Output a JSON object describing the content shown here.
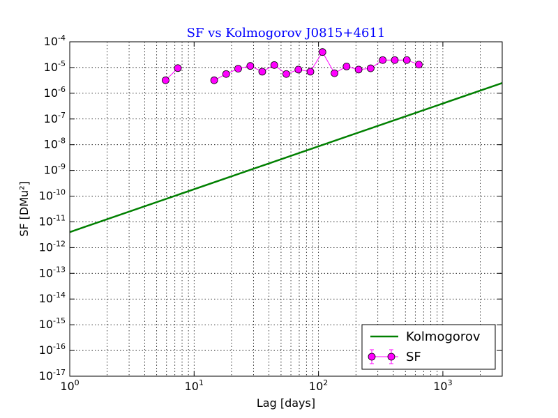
{
  "chart_data": {
    "type": "line",
    "title": "SF vs Kolmogorov J0815+4611",
    "xlabel": "Lag [days]",
    "ylabel": "SF [DMu²]",
    "x_scale": "log",
    "y_scale": "log",
    "xlim": [
      1,
      3000
    ],
    "ylim": [
      1e-17,
      0.0001
    ],
    "grid": true,
    "legend_position": "lower-right",
    "x_ticks": [
      {
        "value": 1,
        "base": "10",
        "exp": "0"
      },
      {
        "value": 10,
        "base": "10",
        "exp": "1"
      },
      {
        "value": 100,
        "base": "10",
        "exp": "2"
      },
      {
        "value": 1000,
        "base": "10",
        "exp": "3"
      }
    ],
    "y_ticks": [
      {
        "value": 1e-17,
        "base": "10",
        "exp": "-17"
      },
      {
        "value": 1e-16,
        "base": "10",
        "exp": "-16"
      },
      {
        "value": 1e-15,
        "base": "10",
        "exp": "-15"
      },
      {
        "value": 1e-14,
        "base": "10",
        "exp": "-14"
      },
      {
        "value": 1e-13,
        "base": "10",
        "exp": "-13"
      },
      {
        "value": 1e-12,
        "base": "10",
        "exp": "-12"
      },
      {
        "value": 1e-11,
        "base": "10",
        "exp": "-11"
      },
      {
        "value": 1e-10,
        "base": "10",
        "exp": "-10"
      },
      {
        "value": 1e-09,
        "base": "10",
        "exp": "-9"
      },
      {
        "value": 1e-08,
        "base": "10",
        "exp": "-8"
      },
      {
        "value": 1e-07,
        "base": "10",
        "exp": "-7"
      },
      {
        "value": 1e-06,
        "base": "10",
        "exp": "-6"
      },
      {
        "value": 1e-05,
        "base": "10",
        "exp": "-5"
      },
      {
        "value": 0.0001,
        "base": "10",
        "exp": "-4"
      }
    ],
    "series": [
      {
        "name": "Kolmogorov",
        "color": "#008000",
        "style": "line",
        "x": [
          1,
          3000
        ],
        "y": [
          4e-12,
          2.5e-06
        ]
      },
      {
        "name": "SF",
        "color": "#ff00ff",
        "style": "line-markers",
        "x": [
          5.9,
          7.4,
          14.5,
          18.1,
          22.6,
          28.3,
          35.3,
          44.1,
          55.1,
          68.9,
          86.1,
          107.6,
          134.5,
          168.1,
          210.1,
          262.6,
          328.3,
          410.3,
          512.9,
          641.2
        ],
        "y": [
          3.2e-06,
          9.5e-06,
          3.2e-06,
          5.6e-06,
          9e-06,
          1.15e-05,
          6.9e-06,
          1.25e-05,
          5.6e-06,
          8.3e-06,
          6.9e-06,
          4e-05,
          6e-06,
          1.1e-05,
          8.3e-06,
          9.3e-06,
          1.95e-05,
          1.95e-05,
          1.95e-05,
          1.3e-05
        ]
      }
    ]
  }
}
